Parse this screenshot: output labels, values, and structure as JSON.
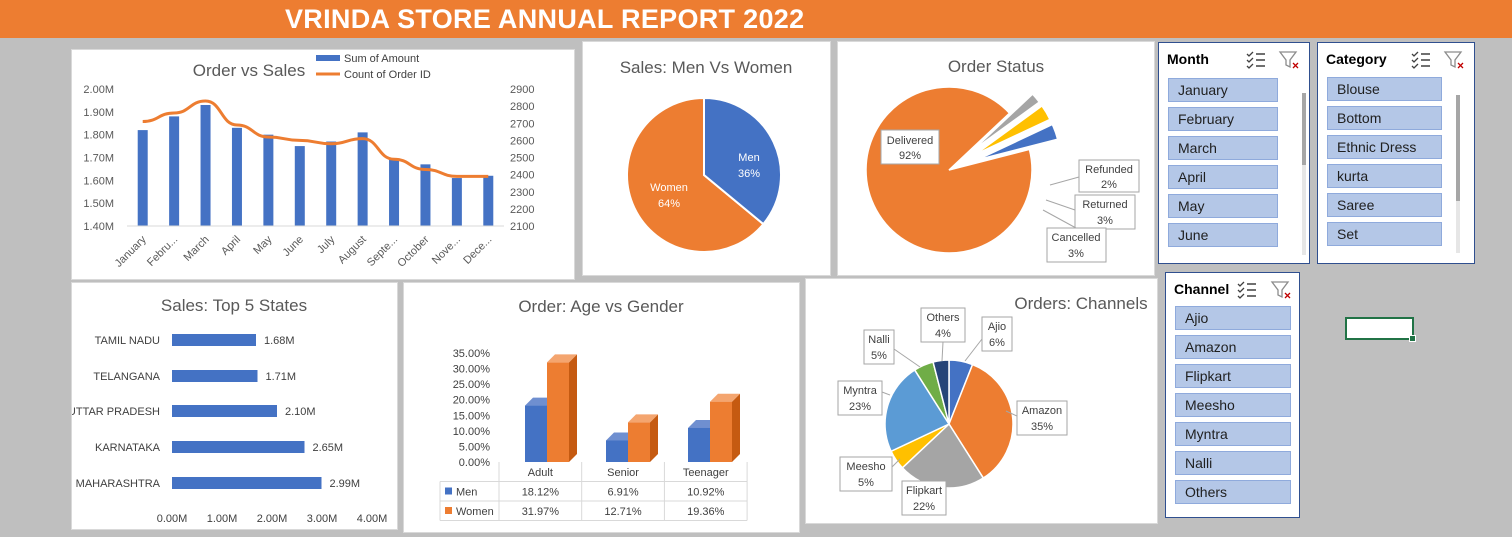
{
  "banner": {
    "title": "VRINDA STORE ANNUAL REPORT 2022"
  },
  "colors": {
    "blue": "#4472c4",
    "orange": "#ed7d31",
    "gray": "#a5a5a5",
    "yellow": "#ffc000",
    "light_blue": "#5b9bd5",
    "green": "#70ad47",
    "navy": "#264478"
  },
  "charts": {
    "order_vs_sales": {
      "title": "Order vs Sales",
      "legend_amount": "Sum of Amount",
      "legend_count": "Count of Order ID",
      "left_ticks": [
        "2.00M",
        "1.90M",
        "1.80M",
        "1.70M",
        "1.60M",
        "1.50M",
        "1.40M"
      ],
      "right_ticks": [
        "2900",
        "2800",
        "2700",
        "2600",
        "2500",
        "2400",
        "2300",
        "2200",
        "2100"
      ],
      "months": [
        "January",
        "Febru...",
        "March",
        "April",
        "May",
        "June",
        "July",
        "August",
        "Septe...",
        "October",
        "Nove...",
        "Dece..."
      ]
    },
    "men_women": {
      "title": "Sales: Men Vs Women",
      "men": "Men",
      "men_pct": "36%",
      "women": "Women",
      "women_pct": "64%"
    },
    "order_status": {
      "title": "Order Status",
      "delivered": "Delivered",
      "delivered_pct": "92%",
      "refunded": "Refunded",
      "refunded_pct": "2%",
      "returned": "Returned",
      "returned_pct": "3%",
      "cancelled": "Cancelled",
      "cancelled_pct": "3%"
    },
    "top_states": {
      "title": "Sales: Top 5 States",
      "states": [
        "TAMIL NADU",
        "TELANGANA",
        "UTTAR PRADESH",
        "KARNATAKA",
        "MAHARASHTRA"
      ],
      "labels": [
        "1.68M",
        "1.71M",
        "2.10M",
        "2.65M",
        "2.99M"
      ],
      "ticks": [
        "0.00M",
        "1.00M",
        "2.00M",
        "3.00M",
        "4.00M"
      ]
    },
    "age_gender": {
      "title": "Order: Age vs Gender",
      "ticks": [
        "35.00%",
        "30.00%",
        "25.00%",
        "20.00%",
        "15.00%",
        "10.00%",
        "5.00%",
        "0.00%"
      ],
      "groups": [
        "Adult",
        "Senior",
        "Teenager"
      ],
      "men_label": "Men",
      "women_label": "Women",
      "men_values": [
        "18.12%",
        "6.91%",
        "10.92%"
      ],
      "women_values": [
        "31.97%",
        "12.71%",
        "19.36%"
      ]
    },
    "channels": {
      "title": "Orders: Channels",
      "labels": [
        "Ajio",
        "Amazon",
        "Flipkart",
        "Meesho",
        "Myntra",
        "Nalli",
        "Others"
      ],
      "pcts": [
        "6%",
        "35%",
        "22%",
        "5%",
        "23%",
        "5%",
        "4%"
      ]
    }
  },
  "chart_data": [
    {
      "type": "bar",
      "title": "Order vs Sales",
      "categories": [
        "January",
        "February",
        "March",
        "April",
        "May",
        "June",
        "July",
        "August",
        "September",
        "October",
        "November",
        "December"
      ],
      "series": [
        {
          "name": "Sum of Amount",
          "values": [
            1.82,
            1.88,
            1.93,
            1.83,
            1.8,
            1.75,
            1.77,
            1.81,
            1.69,
            1.67,
            1.61,
            1.62
          ]
        },
        {
          "name": "Count of Order ID",
          "values": [
            2710,
            2760,
            2830,
            2690,
            2620,
            2600,
            2580,
            2610,
            2490,
            2430,
            2390,
            2390
          ]
        }
      ],
      "ylim": [
        1.4,
        2.0
      ],
      "y2lim": [
        2100,
        2900
      ]
    },
    {
      "type": "pie",
      "title": "Sales: Men Vs Women",
      "categories": [
        "Men",
        "Women"
      ],
      "values": [
        36,
        64
      ]
    },
    {
      "type": "pie",
      "title": "Order Status",
      "categories": [
        "Delivered",
        "Refunded",
        "Returned",
        "Cancelled"
      ],
      "values": [
        92,
        2,
        3,
        3
      ]
    },
    {
      "type": "bar",
      "title": "Sales: Top 5 States",
      "categories": [
        "TAMIL NADU",
        "TELANGANA",
        "UTTAR PRADESH",
        "KARNATAKA",
        "MAHARASHTRA"
      ],
      "values": [
        1.68,
        1.71,
        2.1,
        2.65,
        2.99
      ],
      "xlim": [
        0,
        4
      ]
    },
    {
      "type": "bar",
      "title": "Order: Age vs Gender",
      "categories": [
        "Adult",
        "Senior",
        "Teenager"
      ],
      "series": [
        {
          "name": "Men",
          "values": [
            18.12,
            6.91,
            10.92
          ]
        },
        {
          "name": "Women",
          "values": [
            31.97,
            12.71,
            19.36
          ]
        }
      ],
      "ylim": [
        0,
        35
      ]
    },
    {
      "type": "pie",
      "title": "Orders: Channels",
      "categories": [
        "Ajio",
        "Amazon",
        "Flipkart",
        "Meesho",
        "Myntra",
        "Nalli",
        "Others"
      ],
      "values": [
        6,
        35,
        22,
        5,
        23,
        5,
        4
      ]
    }
  ],
  "slicers": {
    "month": {
      "title": "Month",
      "items": [
        "January",
        "February",
        "March",
        "April",
        "May",
        "June"
      ]
    },
    "category": {
      "title": "Category",
      "items": [
        "Blouse",
        "Bottom",
        "Ethnic Dress",
        "kurta",
        "Saree",
        "Set"
      ]
    },
    "channel": {
      "title": "Channel",
      "items": [
        "Ajio",
        "Amazon",
        "Flipkart",
        "Meesho",
        "Myntra",
        "Nalli",
        "Others"
      ]
    }
  }
}
